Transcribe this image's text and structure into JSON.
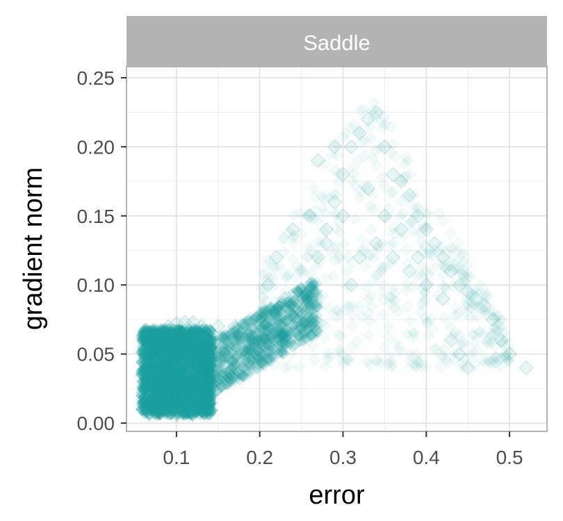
{
  "chart_data": {
    "type": "scatter",
    "facet_label": "Saddle",
    "title": "",
    "xlabel": "error",
    "ylabel": "gradient norm",
    "xlim": [
      0.04,
      0.545
    ],
    "ylim": [
      -0.006,
      0.258
    ],
    "x_ticks": [
      0.1,
      0.2,
      0.3,
      0.4,
      0.5
    ],
    "x_tick_labels": [
      "0.1",
      "0.2",
      "0.3",
      "0.4",
      "0.5"
    ],
    "y_ticks": [
      0.0,
      0.05,
      0.1,
      0.15,
      0.2,
      0.25
    ],
    "y_tick_labels": [
      "0.00",
      "0.05",
      "0.10",
      "0.15",
      "0.20",
      "0.25"
    ],
    "grid": true,
    "marker": "diamond",
    "colors": {
      "points": "#1a9e9e",
      "facet_strip": "#b3b3b3",
      "grid_major": "#dedede",
      "grid_minor": "#ededed",
      "panel_border": "#b3b3b3"
    },
    "series": [
      {
        "points": [
          [
            0.06,
            0.01
          ],
          [
            0.06,
            0.02
          ],
          [
            0.06,
            0.03
          ],
          [
            0.065,
            0.04
          ],
          [
            0.07,
            0.05
          ],
          [
            0.075,
            0.055
          ],
          [
            0.08,
            0.06
          ],
          [
            0.085,
            0.065
          ],
          [
            0.09,
            0.07
          ],
          [
            0.1,
            0.072
          ],
          [
            0.11,
            0.073
          ],
          [
            0.12,
            0.073
          ],
          [
            0.13,
            0.07
          ],
          [
            0.07,
            0.01
          ],
          [
            0.08,
            0.008
          ],
          [
            0.1,
            0.006
          ],
          [
            0.12,
            0.006
          ],
          [
            0.13,
            0.01
          ],
          [
            0.14,
            0.02
          ],
          [
            0.15,
            0.025
          ],
          [
            0.16,
            0.03
          ],
          [
            0.17,
            0.04
          ],
          [
            0.18,
            0.045
          ],
          [
            0.19,
            0.05
          ],
          [
            0.2,
            0.055
          ],
          [
            0.22,
            0.06
          ],
          [
            0.24,
            0.065
          ],
          [
            0.15,
            0.07
          ],
          [
            0.17,
            0.07
          ],
          [
            0.19,
            0.075
          ],
          [
            0.09,
            0.04
          ],
          [
            0.1,
            0.035
          ],
          [
            0.11,
            0.045
          ],
          [
            0.08,
            0.03
          ],
          [
            0.09,
            0.02
          ],
          [
            0.1,
            0.015
          ],
          [
            0.11,
            0.025
          ],
          [
            0.12,
            0.03
          ],
          [
            0.12,
            0.05
          ],
          [
            0.1,
            0.06
          ],
          [
            0.25,
            0.08
          ],
          [
            0.26,
            0.1
          ],
          [
            0.27,
            0.12
          ],
          [
            0.28,
            0.14
          ],
          [
            0.29,
            0.16
          ],
          [
            0.3,
            0.18
          ],
          [
            0.31,
            0.2
          ],
          [
            0.32,
            0.21
          ],
          [
            0.33,
            0.22
          ],
          [
            0.34,
            0.225
          ],
          [
            0.35,
            0.2
          ],
          [
            0.36,
            0.18
          ],
          [
            0.37,
            0.175
          ],
          [
            0.38,
            0.165
          ],
          [
            0.39,
            0.15
          ],
          [
            0.4,
            0.14
          ],
          [
            0.41,
            0.13
          ],
          [
            0.42,
            0.12
          ],
          [
            0.43,
            0.11
          ],
          [
            0.44,
            0.1
          ],
          [
            0.45,
            0.095
          ],
          [
            0.46,
            0.09
          ],
          [
            0.47,
            0.085
          ],
          [
            0.48,
            0.075
          ],
          [
            0.49,
            0.06
          ],
          [
            0.5,
            0.05
          ],
          [
            0.52,
            0.04
          ],
          [
            0.43,
            0.06
          ],
          [
            0.44,
            0.05
          ],
          [
            0.45,
            0.04
          ],
          [
            0.42,
            0.09
          ],
          [
            0.4,
            0.1
          ],
          [
            0.38,
            0.11
          ],
          [
            0.36,
            0.12
          ],
          [
            0.34,
            0.13
          ],
          [
            0.3,
            0.15
          ],
          [
            0.28,
            0.13
          ],
          [
            0.26,
            0.15
          ],
          [
            0.24,
            0.14
          ],
          [
            0.22,
            0.12
          ],
          [
            0.21,
            0.1
          ],
          [
            0.23,
            0.09
          ],
          [
            0.27,
            0.19
          ],
          [
            0.29,
            0.2
          ],
          [
            0.33,
            0.17
          ],
          [
            0.35,
            0.15
          ],
          [
            0.32,
            0.12
          ],
          [
            0.31,
            0.1
          ],
          [
            0.37,
            0.14
          ],
          [
            0.39,
            0.12
          ]
        ]
      }
    ]
  }
}
